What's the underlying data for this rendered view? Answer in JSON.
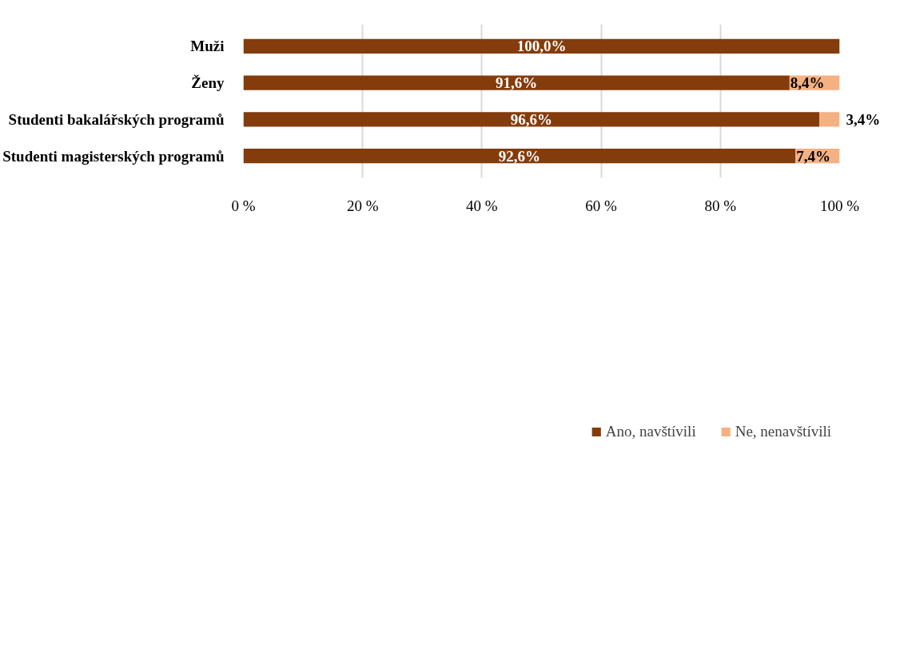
{
  "chart_data": {
    "type": "bar",
    "orientation": "horizontal",
    "stacked": true,
    "categories": [
      "Muži",
      "Ženy",
      "Studenti bakalářských programů",
      "Studenti magisterských programů"
    ],
    "series": [
      {
        "name": "Ano, navštívili",
        "color": "#843c0c",
        "values": [
          100.0,
          91.6,
          96.6,
          92.6
        ],
        "value_labels": [
          "100,0%",
          "91,6%",
          "96,6%",
          "92,6%"
        ]
      },
      {
        "name": "Ne, nenavštívili",
        "color": "#f4b183",
        "values": [
          null,
          8.4,
          3.4,
          7.4
        ],
        "value_labels": [
          null,
          "8,4%",
          "3,4%",
          "7,4%"
        ]
      }
    ],
    "xlim": [
      0,
      100
    ],
    "xticks": [
      {
        "value": 0,
        "label": "0 %"
      },
      {
        "value": 20,
        "label": "20 %"
      },
      {
        "value": 40,
        "label": "40 %"
      },
      {
        "value": 60,
        "label": "60 %"
      },
      {
        "value": 80,
        "label": "80 %"
      },
      {
        "value": 100,
        "label": "100 %"
      }
    ],
    "grid": "x",
    "legend": "bottom"
  }
}
